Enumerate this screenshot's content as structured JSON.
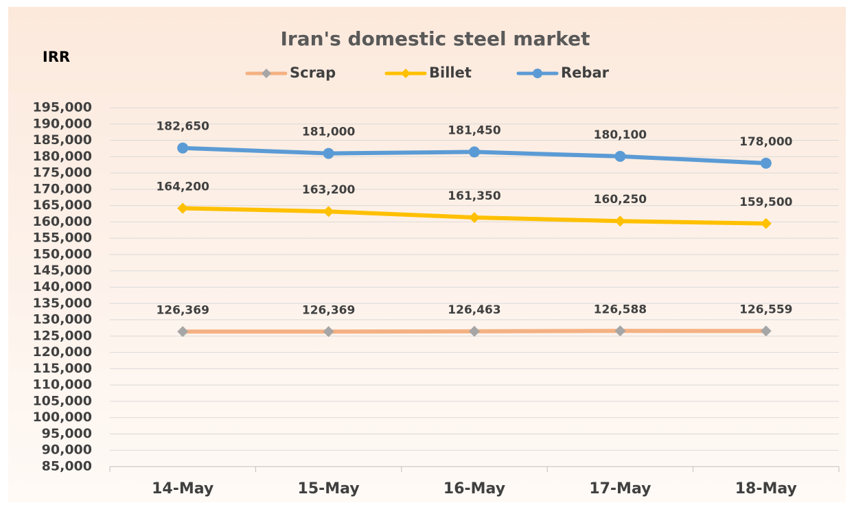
{
  "chart_data": {
    "type": "line",
    "title": "Iran's domestic steel market",
    "y_label": "IRR",
    "categories": [
      "14-May",
      "15-May",
      "16-May",
      "17-May",
      "18-May"
    ],
    "series": [
      {
        "name": "Scrap",
        "color": "#f4b183",
        "marker_color": "#a6a6a6",
        "marker": "diamond",
        "values": [
          126369,
          126369,
          126463,
          126588,
          126559
        ],
        "value_labels": [
          "126,369",
          "126,369",
          "126,463",
          "126,588",
          "126,559"
        ]
      },
      {
        "name": "Billet",
        "color": "#ffc000",
        "marker_color": "#ffc000",
        "marker": "diamond",
        "values": [
          164200,
          163200,
          161350,
          160250,
          159500
        ],
        "value_labels": [
          "164,200",
          "163,200",
          "161,350",
          "160,250",
          "159,500"
        ]
      },
      {
        "name": "Rebar",
        "color": "#5b9bd5",
        "marker_color": "#5b9bd5",
        "marker": "circle",
        "values": [
          182650,
          181000,
          181450,
          180100,
          178000
        ],
        "value_labels": [
          "182,650",
          "181,000",
          "181,450",
          "180,100",
          "178,000"
        ]
      }
    ],
    "ylim": [
      85000,
      195000
    ],
    "yticks": [
      {
        "value": 85000,
        "label": "85,000"
      },
      {
        "value": 90000,
        "label": "90,000"
      },
      {
        "value": 95000,
        "label": "95,000"
      },
      {
        "value": 100000,
        "label": "100,000"
      },
      {
        "value": 105000,
        "label": "105,000"
      },
      {
        "value": 110000,
        "label": "110,000"
      },
      {
        "value": 115000,
        "label": "115,000"
      },
      {
        "value": 120000,
        "label": "120,000"
      },
      {
        "value": 125000,
        "label": "125,000"
      },
      {
        "value": 130000,
        "label": "130,000"
      },
      {
        "value": 135000,
        "label": "135,000"
      },
      {
        "value": 140000,
        "label": "140,000"
      },
      {
        "value": 145000,
        "label": "145,000"
      },
      {
        "value": 150000,
        "label": "150,000"
      },
      {
        "value": 155000,
        "label": "155,000"
      },
      {
        "value": 160000,
        "label": "160,000"
      },
      {
        "value": 165000,
        "label": "165,000"
      },
      {
        "value": 170000,
        "label": "170,000"
      },
      {
        "value": 175000,
        "label": "175,000"
      },
      {
        "value": 180000,
        "label": "180,000"
      },
      {
        "value": 185000,
        "label": "185,000"
      },
      {
        "value": 190000,
        "label": "190,000"
      },
      {
        "value": 195000,
        "label": "195,000"
      }
    ],
    "grid": true,
    "legend": "top"
  }
}
